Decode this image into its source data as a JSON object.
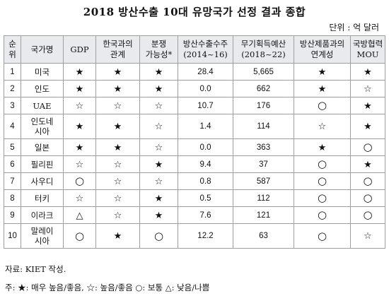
{
  "title": "2018 방산수출 10대 유망국가 선정 결과 종합",
  "unit": "단위 : 억 달러",
  "headers": [
    [
      "순",
      "위"
    ],
    [
      "국가명"
    ],
    [
      "GDP"
    ],
    [
      "한국과의",
      "관계"
    ],
    [
      "분쟁",
      "가능성"
    ],
    [
      "방산수출수주",
      "(2014~16)"
    ],
    [
      "무기획득예산",
      "(2018~22)"
    ],
    [
      "방산제품과의",
      "연계성"
    ],
    [
      "국방협력",
      "MOU"
    ]
  ],
  "header_marks": {
    "4": "*"
  },
  "rows": [
    {
      "rank": "1",
      "name": [
        "미국"
      ],
      "gdp": "★",
      "relation": "★",
      "conflict": "★",
      "export": "28.4",
      "budget": "5,665",
      "link": "★",
      "mou": "★",
      "tall": false
    },
    {
      "rank": "2",
      "name": [
        "인도"
      ],
      "gdp": "★",
      "relation": "★",
      "conflict": "★",
      "export": "0.0",
      "budget": "662",
      "link": "★",
      "mou": "☆",
      "tall": false
    },
    {
      "rank": "3",
      "name": [
        "UAE"
      ],
      "gdp": "☆",
      "relation": "☆",
      "conflict": "☆",
      "export": "10.7",
      "budget": "176",
      "link": "○",
      "mou": "★",
      "tall": false
    },
    {
      "rank": "4",
      "name": [
        "인도네",
        "시아"
      ],
      "gdp": "★",
      "relation": "★",
      "conflict": "☆",
      "export": "1.4",
      "budget": "114",
      "link": "☆",
      "mou": "★",
      "tall": true
    },
    {
      "rank": "5",
      "name": [
        "일본"
      ],
      "gdp": "★",
      "relation": "★",
      "conflict": "☆",
      "export": "0.0",
      "budget": "363",
      "link": "★",
      "mou": "○",
      "tall": false
    },
    {
      "rank": "6",
      "name": [
        "필리핀"
      ],
      "gdp": "☆",
      "relation": "☆",
      "conflict": "★",
      "export": "9.4",
      "budget": "37",
      "link": "○",
      "mou": "★",
      "tall": false
    },
    {
      "rank": "7",
      "name": [
        "사우디"
      ],
      "gdp": "○",
      "relation": "☆",
      "conflict": "☆",
      "export": "0.8",
      "budget": "587",
      "link": "○",
      "mou": "○",
      "tall": false
    },
    {
      "rank": "8",
      "name": [
        "터키"
      ],
      "gdp": "☆",
      "relation": "☆",
      "conflict": "★",
      "export": "0.5",
      "budget": "112",
      "link": "○",
      "mou": "○",
      "tall": false
    },
    {
      "rank": "9",
      "name": [
        "이라크"
      ],
      "gdp": "△",
      "relation": "☆",
      "conflict": "★",
      "export": "7.6",
      "budget": "121",
      "link": "○",
      "mou": "○",
      "tall": false
    },
    {
      "rank": "10",
      "name": [
        "말레이",
        "시아"
      ],
      "gdp": "○",
      "relation": "★",
      "conflict": "○",
      "export": "12.2",
      "budget": "63",
      "link": "○",
      "mou": "☆",
      "tall": true
    }
  ],
  "source": "자료: KIET 작성.",
  "note": "주: ★: 매우 높음/좋음, ☆: 높음/좋음 ○: 보통 △: 낮음/나쁨"
}
